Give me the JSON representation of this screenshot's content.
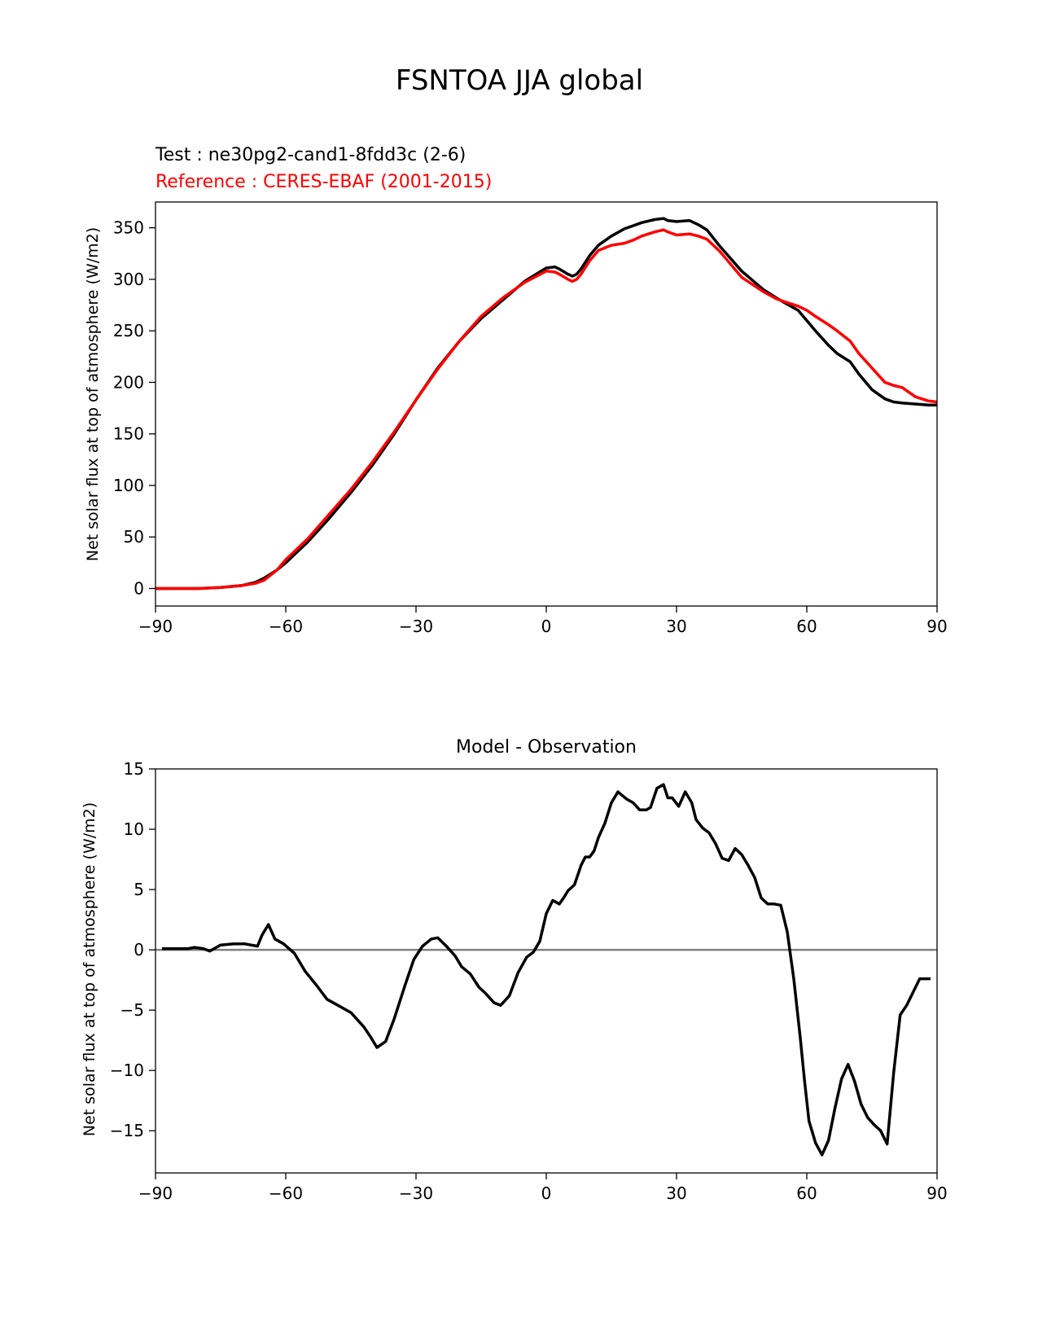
{
  "figure": {
    "suptitle": "FSNTOA JJA global"
  },
  "chart_data": [
    {
      "type": "line",
      "test_label": "Test : ne30pg2-cand1-8fdd3c (2-6)",
      "reference_label": "Reference : CERES-EBAF (2001-2015)",
      "title": "",
      "xlabel": "",
      "ylabel": "Net solar flux at top of atmosphere (W/m2)",
      "xlim": [
        -90,
        90
      ],
      "ylim": [
        -17,
        375
      ],
      "xticks": [
        -90,
        -60,
        -30,
        0,
        30,
        60,
        90
      ],
      "xtick_labels": [
        "−90",
        "−60",
        "−30",
        "0",
        "30",
        "60",
        "90"
      ],
      "yticks": [
        0,
        50,
        100,
        150,
        200,
        250,
        300,
        350
      ],
      "ytick_labels": [
        "0",
        "50",
        "100",
        "150",
        "200",
        "250",
        "300",
        "350"
      ],
      "series": [
        {
          "color": "#000000",
          "x": [
            -90,
            -85,
            -80,
            -75,
            -70,
            -67,
            -65,
            -62,
            -60,
            -55,
            -50,
            -45,
            -40,
            -35,
            -30,
            -25,
            -20,
            -15,
            -10,
            -5,
            0,
            2,
            3,
            5,
            6,
            7,
            8,
            10,
            12,
            15,
            18,
            20,
            22,
            25,
            27,
            28,
            30,
            33,
            35,
            37,
            40,
            45,
            50,
            53,
            55,
            58,
            60,
            62,
            65,
            67,
            70,
            72,
            75,
            78,
            80,
            82,
            85,
            88,
            90
          ],
          "y": [
            0,
            0,
            0,
            1,
            3,
            6,
            10,
            18,
            25,
            45,
            68,
            93,
            120,
            150,
            183,
            214,
            240,
            262,
            280,
            298,
            311,
            312,
            310,
            305,
            303,
            305,
            310,
            323,
            333,
            342,
            349,
            352,
            355,
            358,
            359,
            357,
            356,
            357,
            353,
            348,
            332,
            308,
            290,
            282,
            277,
            270,
            260,
            250,
            236,
            228,
            220,
            208,
            193,
            184,
            181,
            180,
            179,
            178,
            178
          ]
        },
        {
          "color": "#ff0000",
          "x": [
            -90,
            -85,
            -80,
            -75,
            -70,
            -67,
            -65,
            -62,
            -60,
            -55,
            -50,
            -45,
            -40,
            -35,
            -30,
            -25,
            -20,
            -15,
            -10,
            -5,
            0,
            2,
            3,
            5,
            6,
            7,
            8,
            10,
            12,
            15,
            18,
            20,
            22,
            25,
            27,
            28,
            30,
            33,
            35,
            37,
            40,
            45,
            50,
            53,
            55,
            58,
            60,
            62,
            65,
            67,
            70,
            72,
            75,
            78,
            80,
            82,
            85,
            88,
            90
          ],
          "y": [
            0,
            0,
            0,
            1,
            3,
            5,
            8,
            18,
            28,
            48,
            72,
            96,
            123,
            152,
            183,
            213,
            240,
            264,
            282,
            297,
            308,
            307,
            305,
            300,
            298,
            300,
            305,
            318,
            328,
            333,
            335,
            338,
            342,
            346,
            348,
            346,
            343,
            344,
            342,
            339,
            327,
            302,
            288,
            281,
            278,
            274,
            270,
            264,
            256,
            250,
            240,
            228,
            214,
            200,
            197,
            195,
            186,
            182,
            181
          ]
        }
      ]
    },
    {
      "type": "line",
      "title": "Model - Observation",
      "xlabel": "",
      "ylabel": "Net solar flux at top of atmosphere (W/m2)",
      "xlim": [
        -90,
        90
      ],
      "ylim": [
        -18.5,
        15
      ],
      "xticks": [
        -90,
        -60,
        -30,
        0,
        30,
        60,
        90
      ],
      "xtick_labels": [
        "−90",
        "−60",
        "−30",
        "0",
        "30",
        "60",
        "90"
      ],
      "yticks": [
        15,
        10,
        5,
        0,
        -5,
        -10,
        -15
      ],
      "ytick_labels": [
        "15",
        "10",
        "5",
        "0",
        "−5",
        "−10",
        "−15"
      ],
      "zero_line": {
        "y": 0,
        "color": "#808080"
      },
      "series": [
        {
          "color": "#000000",
          "x": [
            -88.5,
            -85.5,
            -82.5,
            -81,
            -79,
            -77.5,
            -75,
            -72,
            -69.5,
            -66.5,
            -65.5,
            -64,
            -62.5,
            -60.5,
            -58,
            -55.5,
            -53,
            -50.5,
            -48,
            -45,
            -42,
            -40.5,
            -39,
            -37,
            -35,
            -32.5,
            -30.5,
            -28.5,
            -26.5,
            -25,
            -23,
            -21,
            -19.5,
            -17.5,
            -15.5,
            -14,
            -12,
            -10.5,
            -8.5,
            -6.5,
            -4.5,
            -3,
            -1.5,
            0,
            1.5,
            3,
            4,
            5,
            6.5,
            8,
            9,
            10,
            11,
            12,
            13.5,
            15,
            16.5,
            17.5,
            18.5,
            20,
            21.5,
            23,
            24,
            25.5,
            27,
            28,
            29,
            30.5,
            32,
            33.5,
            34.5,
            36,
            37.5,
            39,
            40.5,
            42,
            43.5,
            45,
            46.5,
            48,
            49.5,
            51,
            52.5,
            54,
            55.5,
            57,
            58.5,
            59.5,
            60.5,
            62,
            63.5,
            65,
            66.5,
            68,
            69.5,
            71,
            72.5,
            74,
            75.5,
            77,
            78.5,
            80,
            81.5,
            83,
            84.5,
            86,
            88.5
          ],
          "y": [
            0.1,
            0.1,
            0.1,
            0.2,
            0.1,
            -0.1,
            0.4,
            0.5,
            0.5,
            0.3,
            1.2,
            2.1,
            0.9,
            0.5,
            -0.3,
            -1.8,
            -2.9,
            -4.1,
            -4.6,
            -5.2,
            -6.4,
            -7.2,
            -8.1,
            -7.6,
            -5.7,
            -2.9,
            -0.8,
            0.3,
            0.9,
            1.0,
            0.3,
            -0.5,
            -1.4,
            -2.0,
            -3.1,
            -3.6,
            -4.4,
            -4.6,
            -3.8,
            -1.9,
            -0.6,
            -0.2,
            0.7,
            3.0,
            4.1,
            3.8,
            4.3,
            4.9,
            5.4,
            7.0,
            7.7,
            7.7,
            8.2,
            9.3,
            10.5,
            12.2,
            13.1,
            12.8,
            12.5,
            12.2,
            11.6,
            11.6,
            11.8,
            13.4,
            13.7,
            12.6,
            12.6,
            11.9,
            13.1,
            12.2,
            10.8,
            10.1,
            9.7,
            8.8,
            7.6,
            7.4,
            8.4,
            7.9,
            7.0,
            6.0,
            4.3,
            3.8,
            3.8,
            3.7,
            1.5,
            -2.4,
            -7.3,
            -10.9,
            -14.2,
            -16.0,
            -17.0,
            -15.8,
            -13.1,
            -10.7,
            -9.5,
            -10.9,
            -12.8,
            -13.9,
            -14.5,
            -15.0,
            -16.1,
            -10.2,
            -5.4,
            -4.6,
            -3.5,
            -2.4,
            -2.4
          ]
        }
      ]
    }
  ]
}
